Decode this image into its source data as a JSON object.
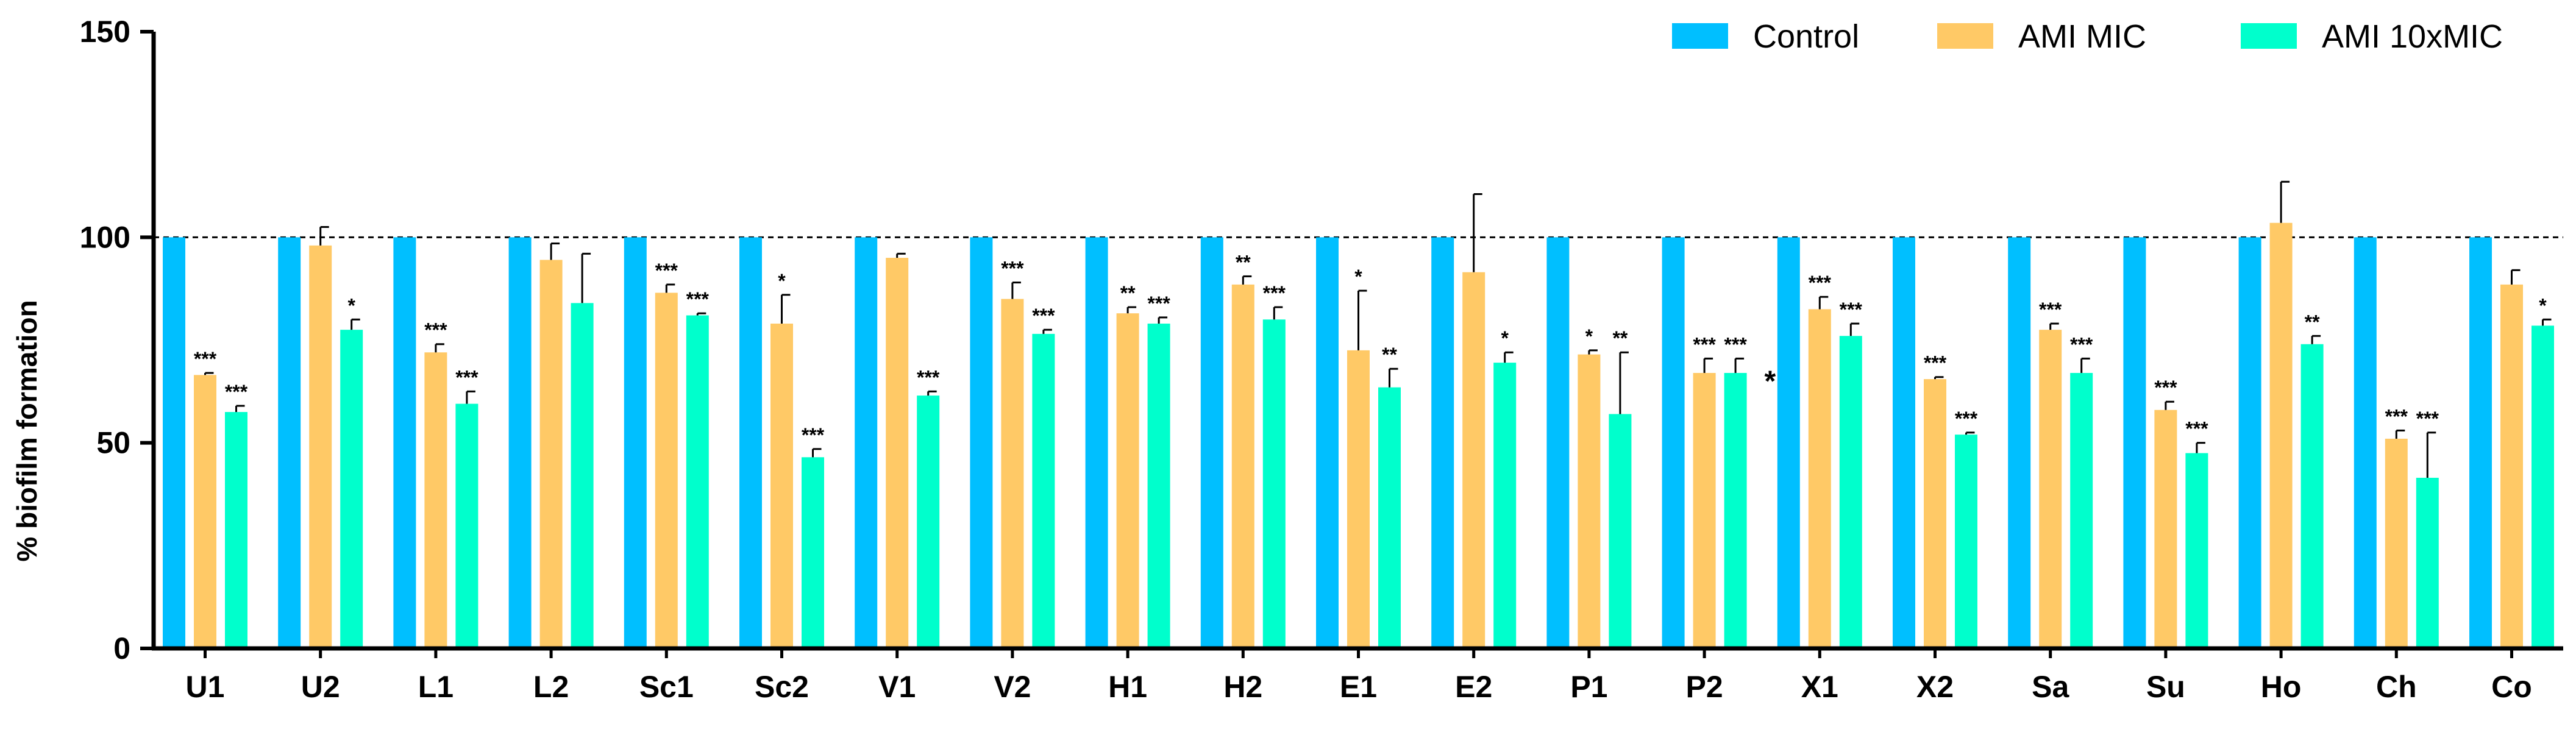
{
  "chart_data": {
    "type": "bar",
    "title": "",
    "xlabel": "",
    "ylabel": "% biofilm formation",
    "ylim": [
      0,
      150
    ],
    "yticks": [
      "0",
      "50",
      "100",
      "150"
    ],
    "reference_line": 100,
    "grid": false,
    "legend_position": "top-right",
    "categories": [
      "U1",
      "U2",
      "L1",
      "L2",
      "Sc1",
      "Sc2",
      "V1",
      "V2",
      "H1",
      "H2",
      "E1",
      "E2",
      "P1",
      "P2",
      "X1",
      "X2",
      "Sa",
      "Su",
      "Ho",
      "Ch",
      "Co"
    ],
    "series": [
      {
        "name": "Control",
        "color": "#00BFFF",
        "values": [
          100,
          100,
          100,
          100,
          100,
          100,
          100,
          100,
          100,
          100,
          100,
          100,
          100,
          100,
          100,
          100,
          100,
          100,
          100,
          100,
          100
        ],
        "errors": [
          0,
          0,
          0,
          0,
          0,
          0,
          0,
          0,
          0,
          0,
          0,
          0,
          0,
          0,
          0,
          0,
          0,
          0,
          0,
          0,
          0
        ],
        "labels": [
          "",
          "",
          "",
          "",
          "",
          "",
          "",
          "",
          "",
          "",
          "",
          "",
          "",
          "",
          "",
          "",
          "",
          "",
          "",
          "",
          ""
        ]
      },
      {
        "name": "AMI MIC",
        "color": "#FFC966",
        "values": [
          66.5,
          98,
          72,
          94.5,
          86.5,
          79,
          95,
          85,
          81.5,
          88.5,
          72.5,
          91.5,
          71.5,
          67,
          82.5,
          65.5,
          77.5,
          58,
          103.5,
          51,
          88.5
        ],
        "errors": [
          0.5,
          4.5,
          2,
          4,
          2,
          7,
          1,
          4,
          1.5,
          2,
          14.5,
          19,
          1,
          3.5,
          3,
          0.5,
          1.5,
          2,
          10,
          2,
          3.5
        ],
        "labels": [
          "***",
          "",
          "***",
          "",
          "***",
          "*",
          "",
          "***",
          "**",
          "**",
          "*",
          "",
          "*",
          "***",
          "***",
          "***",
          "***",
          "***",
          "",
          "***",
          ""
        ]
      },
      {
        "name": "AMI 10xMIC",
        "color": "#00FFCC",
        "values": [
          57.5,
          77.5,
          59.5,
          84,
          81,
          46.5,
          61.5,
          76.5,
          79,
          80,
          63.5,
          69.5,
          57,
          67,
          76,
          52,
          67,
          47.5,
          74,
          41.5,
          78.5
        ],
        "errors": [
          1.5,
          2.5,
          3,
          12,
          0.5,
          2,
          1,
          1,
          1.5,
          3,
          4.5,
          2.5,
          15,
          3.5,
          3,
          0.5,
          3.5,
          2.5,
          2,
          11,
          1.5
        ],
        "labels": [
          "***",
          "*",
          "***",
          "",
          "***",
          "***",
          "***",
          "***",
          "***",
          "***",
          "**",
          "*",
          "**",
          "***",
          "***",
          "***",
          "***",
          "***",
          "**",
          "***",
          "*"
        ]
      }
    ],
    "annotations": [
      {
        "text": "*",
        "category": "X1",
        "value": 65
      }
    ]
  }
}
